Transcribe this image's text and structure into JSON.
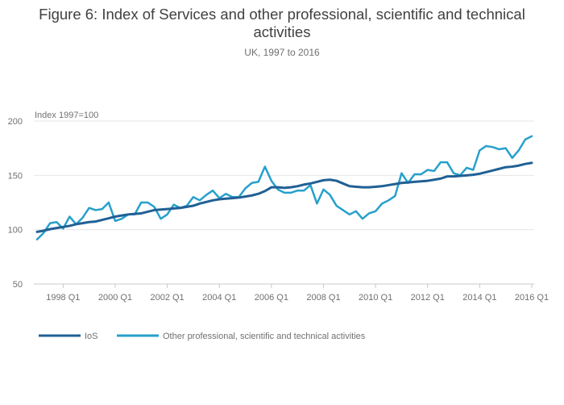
{
  "chart_data": {
    "type": "line",
    "title": "Figure 6: Index of Services and other professional, scientific and technical activities",
    "subtitle": "UK, 1997 to 2016",
    "y_unit_label": "Index 1997=100",
    "ylim": [
      50,
      200
    ],
    "y_ticks": [
      50,
      100,
      150,
      200
    ],
    "x_tick_labels": [
      "1998 Q1",
      "2000 Q1",
      "2002 Q1",
      "2004 Q1",
      "2006 Q1",
      "2008 Q1",
      "2010 Q1",
      "2012 Q1",
      "2014 Q1",
      "2016 Q1"
    ],
    "x": [
      "1997 Q1",
      "1997 Q2",
      "1997 Q3",
      "1997 Q4",
      "1998 Q1",
      "1998 Q2",
      "1998 Q3",
      "1998 Q4",
      "1999 Q1",
      "1999 Q2",
      "1999 Q3",
      "1999 Q4",
      "2000 Q1",
      "2000 Q2",
      "2000 Q3",
      "2000 Q4",
      "2001 Q1",
      "2001 Q2",
      "2001 Q3",
      "2001 Q4",
      "2002 Q1",
      "2002 Q2",
      "2002 Q3",
      "2002 Q4",
      "2003 Q1",
      "2003 Q2",
      "2003 Q3",
      "2003 Q4",
      "2004 Q1",
      "2004 Q2",
      "2004 Q3",
      "2004 Q4",
      "2005 Q1",
      "2005 Q2",
      "2005 Q3",
      "2005 Q4",
      "2006 Q1",
      "2006 Q2",
      "2006 Q3",
      "2006 Q4",
      "2007 Q1",
      "2007 Q2",
      "2007 Q3",
      "2007 Q4",
      "2008 Q1",
      "2008 Q2",
      "2008 Q3",
      "2008 Q4",
      "2009 Q1",
      "2009 Q2",
      "2009 Q3",
      "2009 Q4",
      "2010 Q1",
      "2010 Q2",
      "2010 Q3",
      "2010 Q4",
      "2011 Q1",
      "2011 Q2",
      "2011 Q3",
      "2011 Q4",
      "2012 Q1",
      "2012 Q2",
      "2012 Q3",
      "2012 Q4",
      "2013 Q1",
      "2013 Q2",
      "2013 Q3",
      "2013 Q4",
      "2014 Q1",
      "2014 Q2",
      "2014 Q3",
      "2014 Q4",
      "2015 Q1",
      "2015 Q2",
      "2015 Q3",
      "2015 Q4",
      "2016 Q1"
    ],
    "series": [
      {
        "name": "IoS",
        "color": "#206095",
        "values": [
          98,
          99,
          100.5,
          101.5,
          102.5,
          103.5,
          105,
          106,
          107,
          107.5,
          109,
          110.5,
          112,
          113,
          114,
          114.5,
          115,
          116.5,
          118,
          118.5,
          119,
          119.5,
          120,
          121,
          122,
          124,
          125.5,
          127,
          128,
          128.5,
          129,
          129.5,
          130.5,
          131.5,
          133,
          135.5,
          139,
          139,
          138.5,
          139,
          140,
          141.5,
          142.5,
          144,
          145.5,
          146,
          145,
          142.5,
          140,
          139.5,
          139,
          139,
          139.5,
          140,
          141,
          142,
          143,
          143.5,
          144,
          144.5,
          145,
          146,
          147,
          149,
          149,
          149.5,
          150,
          150.5,
          151.5,
          153,
          154.5,
          156,
          157.5,
          158,
          159,
          160.5,
          161.5
        ]
      },
      {
        "name": "Other professional, scientific and technical activities",
        "color": "#27a0cc",
        "values": [
          91,
          97,
          106,
          107,
          101,
          112,
          105,
          111,
          120,
          118,
          119,
          125,
          108,
          110,
          114,
          114,
          125,
          125,
          121,
          110,
          114,
          123,
          120,
          122,
          130,
          127,
          132,
          136,
          129,
          133,
          130,
          130,
          138,
          143,
          144,
          158,
          145,
          137,
          134,
          134,
          136,
          136,
          141,
          124,
          137,
          132,
          122,
          118,
          114,
          117,
          110,
          115,
          117,
          124,
          127,
          131,
          152,
          143,
          151,
          151,
          155,
          154,
          162,
          162,
          152,
          150,
          157,
          155,
          173,
          177,
          176,
          174,
          175,
          166,
          173,
          183,
          186
        ]
      }
    ]
  }
}
